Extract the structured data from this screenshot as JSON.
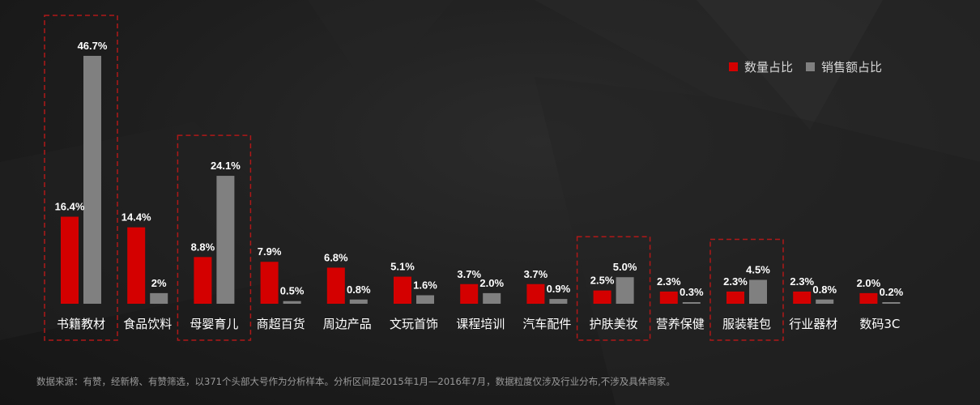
{
  "chart_data": {
    "type": "bar",
    "title": "",
    "xlabel": "",
    "ylabel": "",
    "ylim": [
      0,
      47
    ],
    "grid": false,
    "legend_position": "top-right",
    "categories": [
      "书籍教材",
      "食品饮料",
      "母婴育儿",
      "商超百货",
      "周边产品",
      "文玩首饰",
      "课程培训",
      "汽车配件",
      "护肤美妆",
      "营养保健",
      "服装鞋包",
      "行业器材",
      "数码3C"
    ],
    "series": [
      {
        "name": "数量占比",
        "color": "#d40000",
        "values": [
          16.4,
          14.4,
          8.8,
          7.9,
          6.8,
          5.1,
          3.7,
          3.7,
          2.5,
          2.3,
          2.3,
          2.3,
          2.0
        ],
        "labels": [
          "16.4%",
          "14.4%",
          "8.8%",
          "7.9%",
          "6.8%",
          "5.1%",
          "3.7%",
          "3.7%",
          "2.5%",
          "2.3%",
          "2.3%",
          "2.3%",
          "2.0%"
        ]
      },
      {
        "name": "销售额占比",
        "color": "#808080",
        "values": [
          46.7,
          2,
          24.1,
          0.5,
          0.8,
          1.6,
          2.0,
          0.9,
          5.0,
          0.3,
          4.5,
          0.8,
          0.2
        ],
        "labels": [
          "46.7%",
          "2%",
          "24.1%",
          "0.5%",
          "0.8%",
          "1.6%",
          "2.0%",
          "0.9%",
          "5.0%",
          "0.3%",
          "4.5%",
          "0.8%",
          "0.2%"
        ]
      }
    ],
    "highlighted_categories": [
      "书籍教材",
      "母婴育儿",
      "护肤美妆",
      "服装鞋包"
    ],
    "highlight_color": "#b01818"
  },
  "legend": {
    "items": [
      {
        "label": "数量占比",
        "color": "#d40000"
      },
      {
        "label": "销售额占比",
        "color": "#808080"
      }
    ]
  },
  "footnote": "数据来源：有赞，经新榜、有赞筛选，以371个头部大号作为分析样本。分析区间是2015年1月—2016年7月，数据粒度仅涉及行业分布,不涉及具体商家。"
}
